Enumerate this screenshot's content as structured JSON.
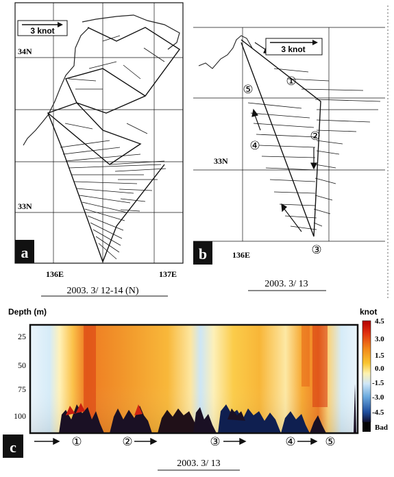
{
  "panel_a": {
    "label": "a",
    "scale_label": "3 knot",
    "lat_labels": [
      "34N",
      "33N"
    ],
    "lon_labels": [
      "136E",
      "137E"
    ],
    "caption": "2003. 3/ 12-14 (N)"
  },
  "panel_b": {
    "label": "b",
    "scale_label": "3 knot",
    "lat_labels": [
      "33N"
    ],
    "lon_labels": [
      "136E"
    ],
    "caption": "2003. 3/ 13",
    "stations": [
      "①",
      "②",
      "③",
      "④",
      "⑤"
    ]
  },
  "panel_c": {
    "label": "c",
    "ylabel": "Depth (m)",
    "depth_ticks": [
      "25",
      "50",
      "75",
      "100"
    ],
    "unit": "knot",
    "colorbar_ticks": [
      "4.5",
      "3.0",
      "1.5",
      "0.0",
      "-1.5",
      "-3.0",
      "-4.5",
      "Bad"
    ],
    "colorbar_colors": [
      "#b30000",
      "#e03010",
      "#f28a1a",
      "#f9c630",
      "#fdf2b0",
      "#cfe6f7",
      "#6aa9de",
      "#1e4e9e",
      "#101030"
    ],
    "stations": [
      "①",
      "②",
      "③",
      "④",
      "⑤"
    ],
    "caption": "2003. 3/ 13"
  }
}
